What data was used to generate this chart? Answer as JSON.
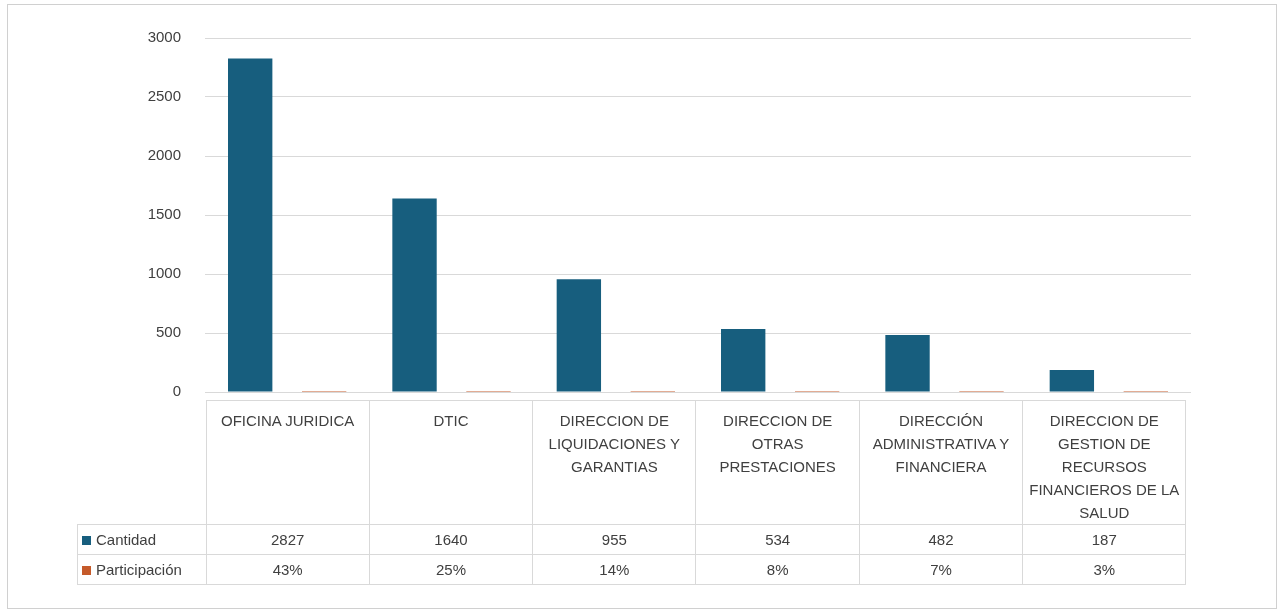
{
  "chart_data": {
    "type": "bar",
    "categories": [
      "OFICINA JURIDICA",
      "DTIC",
      "DIRECCION DE LIQUIDACIONES Y GARANTIAS",
      "DIRECCION DE OTRAS PRESTACIONES",
      "DIRECCIÓN ADMINISTRATIVA Y FINANCIERA",
      "DIRECCION DE GESTION DE RECURSOS FINANCIEROS DE LA SALUD"
    ],
    "series": [
      {
        "name": "Cantidad",
        "color": "#175e7e",
        "values": [
          2827,
          1640,
          955,
          534,
          482,
          187
        ]
      },
      {
        "name": "Participación",
        "color": "#c55a2a",
        "values": [
          0.43,
          0.25,
          0.14,
          0.08,
          0.07,
          0.03
        ],
        "value_labels": [
          "43%",
          "25%",
          "14%",
          "8%",
          "7%",
          "3%"
        ]
      }
    ],
    "ylim": [
      0,
      3000
    ],
    "yticks": [
      0,
      500,
      1000,
      1500,
      2000,
      2500,
      3000
    ],
    "grid": "y",
    "legend": "bottom",
    "data_labels": true
  }
}
